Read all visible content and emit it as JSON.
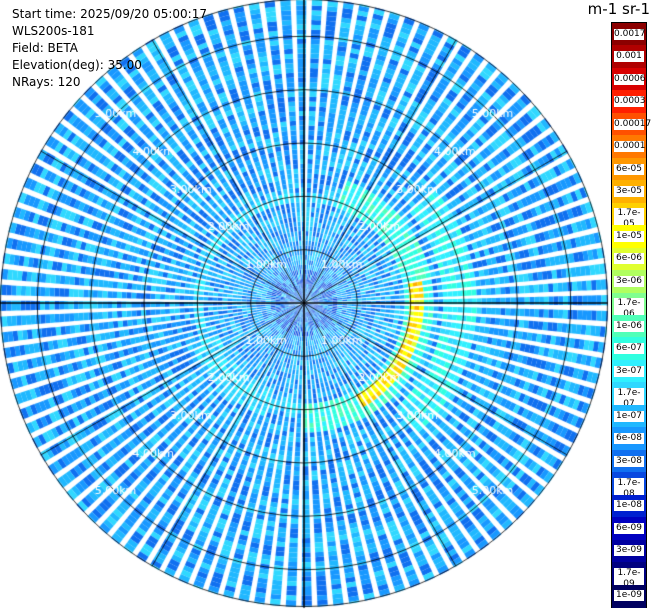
{
  "info": {
    "start_time": "Start time: 2025/09/20 05:00:17",
    "instrument": "WLS200s-181",
    "field": "Field: BETA",
    "elevation": "Elevation(deg): 35.00",
    "nrays": "NRays: 120"
  },
  "colorbar": {
    "title": "m-1 sr-1",
    "labels": [
      "0.0017",
      "0.001",
      "0.0006",
      "0.0003",
      "0.00017",
      "0.0001",
      "6e-05",
      "3e-05",
      "1.7e-05",
      "1e-05",
      "6e-06",
      "3e-06",
      "1.7e-06",
      "1e-06",
      "6e-07",
      "3e-07",
      "1.7e-07",
      "1e-07",
      "6e-08",
      "3e-08",
      "1.7e-08",
      "1e-08",
      "6e-09",
      "3e-09",
      "1.7e-09",
      "1e-09"
    ],
    "colors": [
      "#8b0000",
      "#b00000",
      "#d80000",
      "#ff2000",
      "#ff5000",
      "#ff7800",
      "#ff9800",
      "#ffb000",
      "#ffd000",
      "#ffff00",
      "#e0ff30",
      "#b0ff60",
      "#80ff90",
      "#50ffb8",
      "#30ffe0",
      "#30f0ff",
      "#30d8ff",
      "#20b8ff",
      "#1898ff",
      "#1070f0",
      "#0848e0",
      "#0020d0",
      "#0000c0",
      "#0000a0",
      "#000080",
      "#000060"
    ]
  },
  "chart_data": {
    "type": "heatmap",
    "projection": "polar (PPI scan)",
    "title": "",
    "field": "BETA",
    "units": "m-1 sr-1",
    "elevation_deg": 35.0,
    "n_rays": 120,
    "max_range_km": 5.7,
    "range_rings_km": [
      1.0,
      2.0,
      3.0,
      4.0,
      5.0
    ],
    "ring_labels": [
      "1.00km",
      "2.00km",
      "3.00km",
      "4.00km",
      "5.00km"
    ],
    "radial_lines_deg": [
      0,
      30,
      60,
      90,
      120,
      150,
      180,
      210,
      240,
      270,
      300,
      330
    ],
    "background_value": 7e-08,
    "features": [
      {
        "name": "arc",
        "azimuth_deg": [
          20,
          180
        ],
        "range_km": [
          1.8,
          2.4
        ],
        "value": 5e-07
      },
      {
        "name": "peak",
        "azimuth_deg": [
          80,
          150
        ],
        "range_km": [
          1.9,
          2.2
        ],
        "value": 1.2e-05
      },
      {
        "name": "outer arc",
        "azimuth_deg": [
          50,
          140
        ],
        "range_km": [
          2.6,
          3.2
        ],
        "value": 3e-07
      },
      {
        "name": "inner ring",
        "azimuth_deg": [
          0,
          360
        ],
        "range_km": [
          1.8,
          2.0
        ],
        "value": 2e-07
      },
      {
        "name": "southwest arc",
        "azimuth_deg": [
          200,
          250
        ],
        "range_km": [
          1.7,
          2.2
        ],
        "value": 1.5e-07
      }
    ]
  }
}
